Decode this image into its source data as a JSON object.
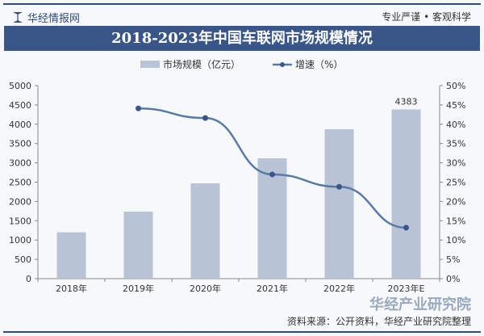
{
  "header": {
    "brand": "华经情报网",
    "slogan": "专业严谨 • 客观科学",
    "title": "2018-2023年中国车联网市场规模情况"
  },
  "footer": {
    "source": "资料来源：公开资料，华经产业研究院整理",
    "watermark": "华经产业研究院"
  },
  "chart_data": {
    "type": "bar+line",
    "title": "2018-2023年中国车联网市场规模情况",
    "categories": [
      "2018年",
      "2019年",
      "2020年",
      "2021年",
      "2022年",
      "2023年E"
    ],
    "series": [
      {
        "name": "市场规模（亿元）",
        "type": "bar",
        "axis": "left",
        "color": "#b8c4d6",
        "values": [
          1200,
          1736,
          2469,
          3117,
          3870,
          4383
        ],
        "data_labels": [
          null,
          null,
          null,
          null,
          null,
          "4383"
        ]
      },
      {
        "name": "增速（%）",
        "type": "line",
        "axis": "right",
        "color": "#5a7aa6",
        "values": [
          null,
          44.1,
          41.6,
          27.0,
          23.8,
          13.2
        ]
      }
    ],
    "y_left": {
      "min": 0,
      "max": 5000,
      "step": 500,
      "ticks": [
        "0",
        "500",
        "1000",
        "1500",
        "2000",
        "2500",
        "3000",
        "3500",
        "4000",
        "4500",
        "5000"
      ]
    },
    "y_right": {
      "min": 0,
      "max": 50,
      "step": 5,
      "ticks": [
        "0%",
        "5%",
        "10%",
        "15%",
        "20%",
        "25%",
        "30%",
        "35%",
        "40%",
        "45%",
        "50%"
      ]
    },
    "legend": "top-center",
    "grid": false
  }
}
